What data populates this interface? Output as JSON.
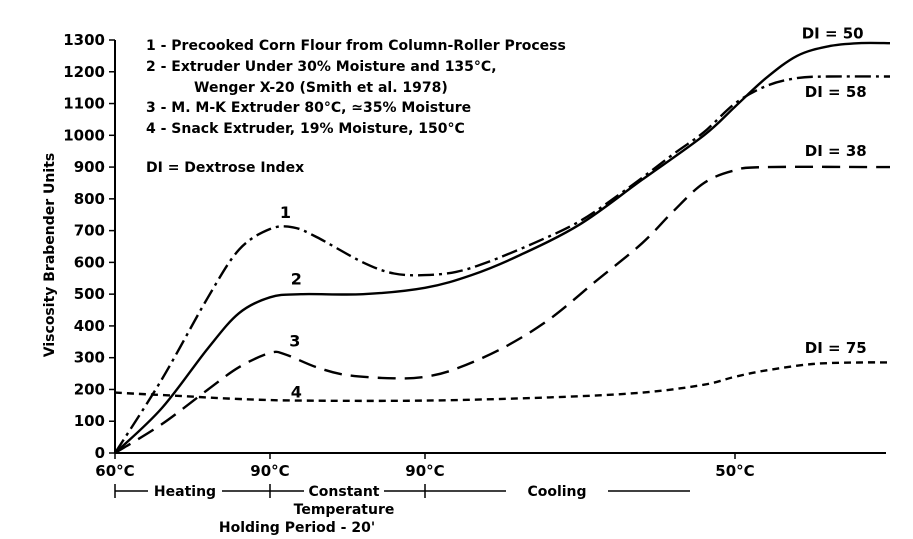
{
  "chart_data": {
    "type": "line",
    "title": "",
    "ylabel": "Viscosity Brabender Units",
    "xlabel": "",
    "ylim": [
      0,
      1300
    ],
    "y_ticks": [
      "0",
      "100",
      "200",
      "300",
      "400",
      "500",
      "600",
      "700",
      "800",
      "900",
      "1000",
      "1100",
      "1200",
      "1300"
    ],
    "x_ticks": [
      "60°C",
      "90°C",
      "90°C",
      "50°C"
    ],
    "xlim_minutes": [
      0,
      50
    ],
    "x_tick_minutes": [
      0,
      10,
      20,
      40
    ],
    "phases": [
      "Heating",
      "Constant Temperature",
      "Cooling"
    ],
    "phase_breaks_minutes": [
      0,
      10,
      20,
      40
    ],
    "holding_label": "Holding Period - 20'",
    "legend": [
      "1 - Precooked Corn Flour from Column-Roller Process",
      "2 - Extruder Under 30% Moisture and 135°C,",
      "Wenger X-20 (Smith et al. 1978)",
      "3 - M. M-K Extruder 80°C, ≃35% Moisture",
      "4 - Snack Extruder, 19% Moisture, 150°C"
    ],
    "note": "DI = Dextrose Index",
    "series": [
      {
        "id": "1",
        "label": "1",
        "end_label": "DI = 58",
        "style": "dash-dot",
        "points": [
          [
            0,
            0
          ],
          [
            3,
            230
          ],
          [
            6,
            490
          ],
          [
            8,
            640
          ],
          [
            10,
            705
          ],
          [
            11.5,
            710
          ],
          [
            13,
            680
          ],
          [
            16,
            600
          ],
          [
            18,
            565
          ],
          [
            20,
            560
          ],
          [
            22,
            570
          ],
          [
            24,
            600
          ],
          [
            27,
            660
          ],
          [
            30,
            730
          ],
          [
            33,
            830
          ],
          [
            36,
            940
          ],
          [
            38,
            1010
          ],
          [
            40,
            1100
          ],
          [
            42,
            1155
          ],
          [
            44,
            1180
          ],
          [
            46,
            1185
          ],
          [
            50,
            1185
          ]
        ]
      },
      {
        "id": "2",
        "label": "2",
        "end_label": "DI = 50",
        "style": "solid",
        "points": [
          [
            0,
            0
          ],
          [
            3,
            140
          ],
          [
            6,
            330
          ],
          [
            8,
            440
          ],
          [
            10,
            490
          ],
          [
            12,
            500
          ],
          [
            16,
            500
          ],
          [
            20,
            520
          ],
          [
            23,
            560
          ],
          [
            26,
            620
          ],
          [
            30,
            720
          ],
          [
            34,
            860
          ],
          [
            38,
            1000
          ],
          [
            40,
            1090
          ],
          [
            42,
            1180
          ],
          [
            44,
            1250
          ],
          [
            46,
            1280
          ],
          [
            48,
            1290
          ],
          [
            50,
            1290
          ]
        ]
      },
      {
        "id": "3",
        "label": "3",
        "end_label": "DI = 38",
        "style": "dashed",
        "points": [
          [
            0,
            0
          ],
          [
            3,
            90
          ],
          [
            6,
            200
          ],
          [
            8,
            270
          ],
          [
            10,
            315
          ],
          [
            11,
            310
          ],
          [
            13,
            270
          ],
          [
            15,
            245
          ],
          [
            18,
            235
          ],
          [
            20,
            240
          ],
          [
            22,
            265
          ],
          [
            25,
            330
          ],
          [
            28,
            420
          ],
          [
            31,
            540
          ],
          [
            34,
            660
          ],
          [
            36,
            760
          ],
          [
            38,
            850
          ],
          [
            40,
            890
          ],
          [
            42,
            900
          ],
          [
            50,
            900
          ]
        ]
      },
      {
        "id": "4",
        "label": "4",
        "end_label": "DI = 75",
        "style": "dotted",
        "points": [
          [
            0,
            190
          ],
          [
            4,
            180
          ],
          [
            8,
            170
          ],
          [
            12,
            165
          ],
          [
            20,
            165
          ],
          [
            28,
            175
          ],
          [
            34,
            190
          ],
          [
            38,
            215
          ],
          [
            40,
            240
          ],
          [
            42,
            260
          ],
          [
            45,
            280
          ],
          [
            48,
            285
          ],
          [
            50,
            285
          ]
        ]
      }
    ]
  }
}
